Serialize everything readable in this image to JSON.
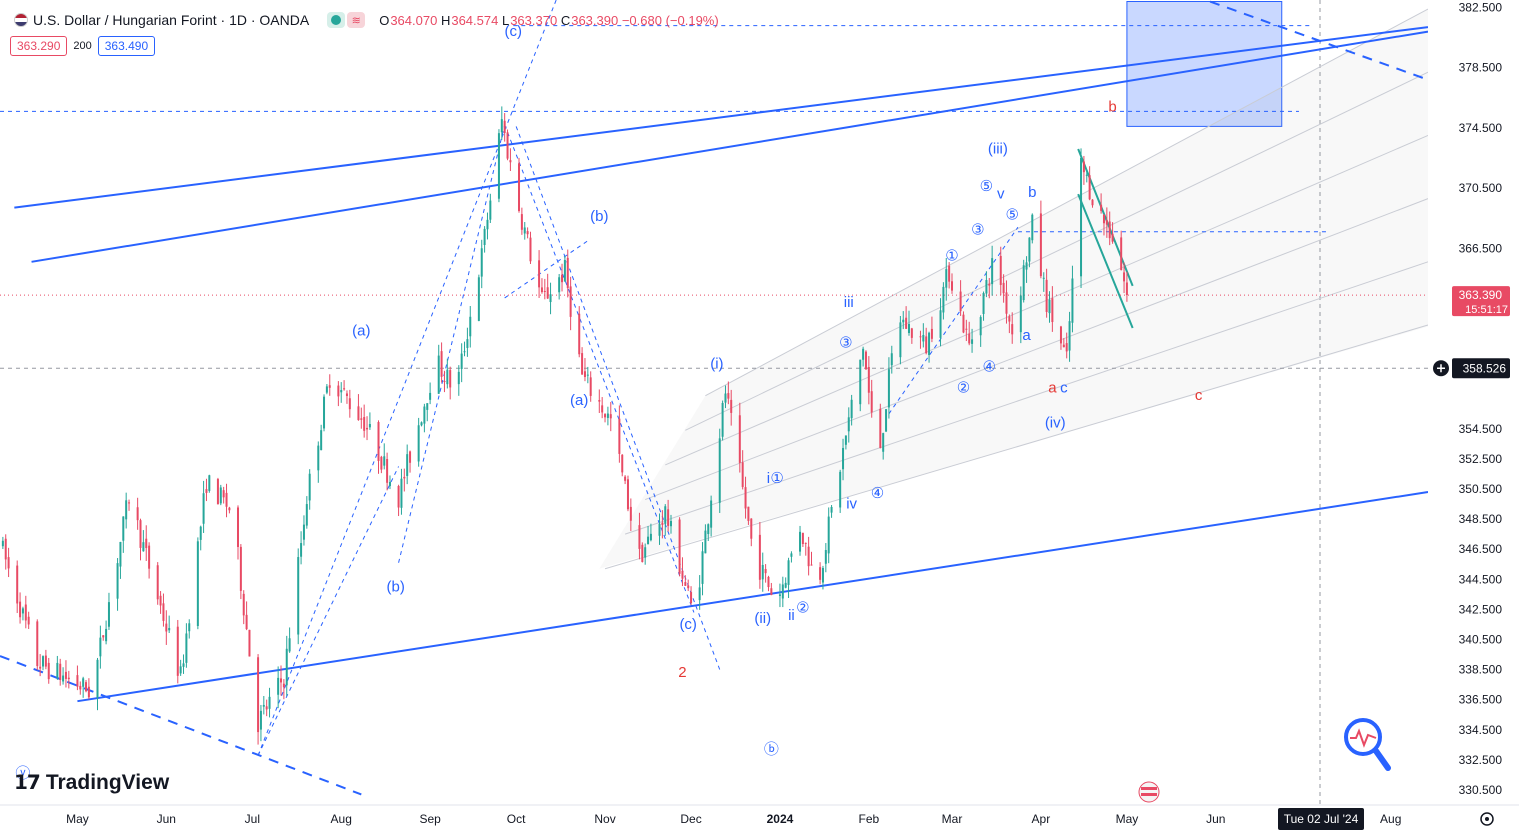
{
  "header": {
    "symbol": "U.S. Dollar / Hungarian Forint · 1D · OANDA",
    "open_label": "O",
    "open": "364.070",
    "high_label": "H",
    "high": "364.574",
    "low_label": "L",
    "low": "363.370",
    "close_label": "C",
    "close": "363.390",
    "change": "−0.680 (−0.19%)"
  },
  "quote": {
    "bid": "363.290",
    "spread": "200",
    "ask": "363.490"
  },
  "price_tag": {
    "price": "363.390",
    "countdown": "15:51:17"
  },
  "crosshair": {
    "price": "358.526",
    "date": "Tue 02 Jul '24"
  },
  "logo": {
    "text": "TradingView"
  },
  "colors": {
    "up": "#26a69a",
    "down": "#e84a64",
    "line": "#2962ff",
    "wave_red": "#e53935",
    "accent": "#2962ff"
  },
  "chart_data": {
    "type": "candlestick",
    "title": "U.S. Dollar / Hungarian Forint · 1D · OANDA",
    "y_ticks": [
      382.5,
      378.5,
      374.5,
      370.5,
      366.5,
      354.5,
      352.5,
      350.5,
      348.5,
      346.5,
      344.5,
      342.5,
      340.5,
      338.5,
      336.5,
      334.5,
      332.5,
      330.5
    ],
    "y_tick_labels": [
      "382.500",
      "378.500",
      "374.500",
      "370.500",
      "366.500",
      "354.500",
      "352.500",
      "350.500",
      "348.500",
      "346.500",
      "344.500",
      "342.500",
      "340.500",
      "338.500",
      "336.500",
      "334.500",
      "332.500",
      "330.500"
    ],
    "x_ticks": [
      {
        "label": "May",
        "t": 0
      },
      {
        "label": "Jun",
        "t": 31
      },
      {
        "label": "Jul",
        "t": 61
      },
      {
        "label": "Aug",
        "t": 92
      },
      {
        "label": "Sep",
        "t": 123
      },
      {
        "label": "Oct",
        "t": 153
      },
      {
        "label": "Nov",
        "t": 184
      },
      {
        "label": "Dec",
        "t": 214
      },
      {
        "label": "2024",
        "t": 245
      },
      {
        "label": "Feb",
        "t": 276
      },
      {
        "label": "Mar",
        "t": 305
      },
      {
        "label": "Apr",
        "t": 336
      },
      {
        "label": "May",
        "t": 366
      },
      {
        "label": "Jun",
        "t": 397
      },
      {
        "label": "Aug",
        "t": 458
      }
    ],
    "ylim": [
      329.5,
      383.0
    ],
    "xlim": [
      -27,
      471
    ],
    "last_price": 363.39,
    "crosshair_price": 358.526,
    "pivots": [
      {
        "t": -27,
        "p": 347
      },
      {
        "t": -14,
        "p": 339
      },
      {
        "t": 5,
        "p": 337
      },
      {
        "t": 18,
        "p": 350
      },
      {
        "t": 36,
        "p": 338
      },
      {
        "t": 45,
        "p": 351
      },
      {
        "t": 54,
        "p": 349
      },
      {
        "t": 63,
        "p": 335
      },
      {
        "t": 72,
        "p": 338
      },
      {
        "t": 80,
        "p": 350
      },
      {
        "t": 88,
        "p": 358
      },
      {
        "t": 100,
        "p": 355
      },
      {
        "t": 112,
        "p": 350
      },
      {
        "t": 125,
        "p": 359
      },
      {
        "t": 132,
        "p": 357
      },
      {
        "t": 141,
        "p": 366
      },
      {
        "t": 148,
        "p": 375
      },
      {
        "t": 153,
        "p": 370
      },
      {
        "t": 162,
        "p": 363
      },
      {
        "t": 170,
        "p": 365
      },
      {
        "t": 176,
        "p": 358
      },
      {
        "t": 186,
        "p": 355
      },
      {
        "t": 196,
        "p": 346
      },
      {
        "t": 205,
        "p": 349
      },
      {
        "t": 215,
        "p": 342
      },
      {
        "t": 226,
        "p": 357
      },
      {
        "t": 236,
        "p": 346
      },
      {
        "t": 244,
        "p": 343
      },
      {
        "t": 252,
        "p": 348
      },
      {
        "t": 258,
        "p": 344
      },
      {
        "t": 266,
        "p": 352
      },
      {
        "t": 274,
        "p": 360
      },
      {
        "t": 279,
        "p": 352
      },
      {
        "t": 286,
        "p": 362
      },
      {
        "t": 296,
        "p": 360
      },
      {
        "t": 304,
        "p": 365
      },
      {
        "t": 311,
        "p": 360
      },
      {
        "t": 320,
        "p": 366
      },
      {
        "t": 326,
        "p": 361
      },
      {
        "t": 333,
        "p": 368
      },
      {
        "t": 338,
        "p": 363
      },
      {
        "t": 345,
        "p": 359
      },
      {
        "t": 350,
        "p": 372
      },
      {
        "t": 356,
        "p": 369
      },
      {
        "t": 362,
        "p": 367
      },
      {
        "t": 366,
        "p": 363.39
      }
    ],
    "annotations": [
      {
        "text": "(c)",
        "t": 152,
        "p": 380.6,
        "color": "blue"
      },
      {
        "text": "(a)",
        "t": 99,
        "p": 360.7,
        "color": "blue"
      },
      {
        "text": "(b)",
        "t": 111,
        "p": 343.7,
        "color": "blue"
      },
      {
        "text": "(b)",
        "t": 182,
        "p": 368.3,
        "color": "blue"
      },
      {
        "text": "(a)",
        "t": 175,
        "p": 356.1,
        "color": "blue"
      },
      {
        "text": "(c)",
        "t": 213,
        "p": 341.2,
        "color": "blue"
      },
      {
        "text": "2",
        "t": 211,
        "p": 338.0,
        "color": "red"
      },
      {
        "text": "(i)",
        "t": 223,
        "p": 358.5,
        "color": "blue"
      },
      {
        "text": "(ii)",
        "t": 239,
        "p": 341.6,
        "color": "blue"
      },
      {
        "text": "(iii)",
        "t": 321,
        "p": 372.8,
        "color": "blue"
      },
      {
        "text": "(iv)",
        "t": 341,
        "p": 354.6,
        "color": "blue"
      },
      {
        "text": "iii",
        "t": 269,
        "p": 362.6,
        "color": "blue"
      },
      {
        "text": "i",
        "t": 241,
        "p": 350.9,
        "color": "blue"
      },
      {
        "text": "ii",
        "t": 249,
        "p": 341.8,
        "color": "blue"
      },
      {
        "text": "iv",
        "t": 270,
        "p": 349.2,
        "color": "blue"
      },
      {
        "text": "v",
        "t": 322,
        "p": 369.8,
        "color": "blue"
      },
      {
        "text": "b",
        "t": 333,
        "p": 369.9,
        "color": "blue"
      },
      {
        "text": "a",
        "t": 331,
        "p": 360.4,
        "color": "blue"
      },
      {
        "text": "a",
        "t": 340,
        "p": 356.9,
        "color": "red"
      },
      {
        "text": "c",
        "t": 344,
        "p": 356.9,
        "color": "blue"
      },
      {
        "text": "b",
        "t": 361,
        "p": 375.6,
        "color": "red"
      },
      {
        "text": "c",
        "t": 391,
        "p": 356.4,
        "color": "red"
      },
      {
        "text": "①",
        "t": 244,
        "p": 350.9,
        "color": "blue"
      },
      {
        "text": "②",
        "t": 253,
        "p": 342.3,
        "color": "blue"
      },
      {
        "text": "③",
        "t": 268,
        "p": 359.9,
        "color": "blue"
      },
      {
        "text": "④",
        "t": 279,
        "p": 349.9,
        "color": "blue"
      },
      {
        "text": "①",
        "t": 305,
        "p": 365.7,
        "color": "blue"
      },
      {
        "text": "②",
        "t": 309,
        "p": 356.9,
        "color": "blue"
      },
      {
        "text": "③",
        "t": 314,
        "p": 367.4,
        "color": "blue"
      },
      {
        "text": "④",
        "t": 318,
        "p": 358.3,
        "color": "blue"
      },
      {
        "text": "⑤",
        "t": 326,
        "p": 368.4,
        "color": "blue"
      },
      {
        "text": "⑤",
        "t": 317,
        "p": 370.3,
        "color": "blue"
      },
      {
        "text": "ⓑ",
        "t": 242,
        "p": 332.9,
        "color": "blue"
      },
      {
        "text": "ⓥ",
        "t": -19,
        "p": 331.3,
        "color": "blue"
      }
    ]
  }
}
